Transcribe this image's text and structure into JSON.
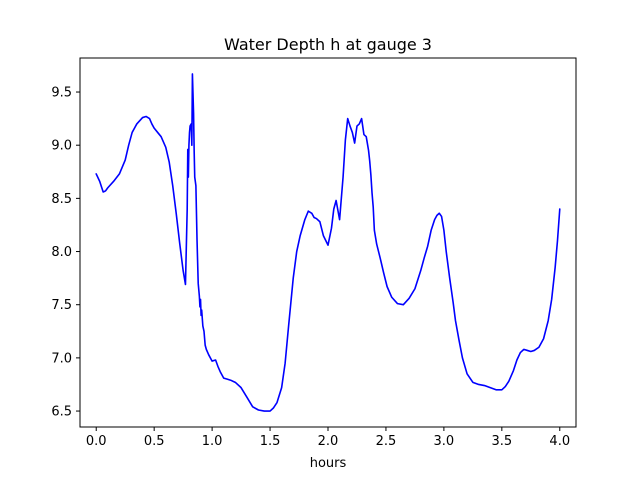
{
  "chart_data": {
    "type": "line",
    "title": "Water Depth h at gauge 3",
    "xlabel": "hours",
    "ylabel": "",
    "xlim": [
      -0.14,
      4.14
    ],
    "ylim": [
      6.35,
      9.82
    ],
    "grid": false,
    "xticks": [
      0.0,
      0.5,
      1.0,
      1.5,
      2.0,
      2.5,
      3.0,
      3.5,
      4.0
    ],
    "xtick_labels": [
      "0.0",
      "0.5",
      "1.0",
      "1.5",
      "2.0",
      "2.5",
      "3.0",
      "3.5",
      "4.0"
    ],
    "yticks": [
      6.5,
      7.0,
      7.5,
      8.0,
      8.5,
      9.0,
      9.5
    ],
    "ytick_labels": [
      "6.5",
      "7.0",
      "7.5",
      "8.0",
      "8.5",
      "9.0",
      "9.5"
    ],
    "series": [
      {
        "color": "#0000ff",
        "x": [
          0.0,
          0.03,
          0.06,
          0.08,
          0.1,
          0.15,
          0.2,
          0.25,
          0.28,
          0.31,
          0.35,
          0.4,
          0.43,
          0.46,
          0.48,
          0.5,
          0.53,
          0.56,
          0.6,
          0.63,
          0.66,
          0.69,
          0.72,
          0.75,
          0.77,
          0.785,
          0.79,
          0.795,
          0.8,
          0.805,
          0.81,
          0.82,
          0.825,
          0.83,
          0.84,
          0.845,
          0.85,
          0.86,
          0.87,
          0.88,
          0.89,
          0.895,
          0.9,
          0.905,
          0.91,
          0.92,
          0.93,
          0.94,
          0.95,
          0.97,
          1.0,
          1.03,
          1.05,
          1.07,
          1.1,
          1.13,
          1.16,
          1.2,
          1.25,
          1.3,
          1.35,
          1.4,
          1.45,
          1.5,
          1.53,
          1.56,
          1.6,
          1.63,
          1.66,
          1.7,
          1.73,
          1.76,
          1.8,
          1.83,
          1.86,
          1.88,
          1.9,
          1.93,
          1.96,
          2.0,
          2.03,
          2.05,
          2.07,
          2.1,
          2.13,
          2.15,
          2.17,
          2.19,
          2.21,
          2.23,
          2.25,
          2.27,
          2.29,
          2.31,
          2.33,
          2.35,
          2.36,
          2.37,
          2.38,
          2.39,
          2.4,
          2.42,
          2.45,
          2.48,
          2.51,
          2.55,
          2.6,
          2.65,
          2.7,
          2.75,
          2.8,
          2.83,
          2.86,
          2.89,
          2.92,
          2.94,
          2.96,
          2.98,
          3.0,
          3.02,
          3.05,
          3.08,
          3.1,
          3.13,
          3.16,
          3.2,
          3.25,
          3.3,
          3.35,
          3.4,
          3.45,
          3.5,
          3.53,
          3.56,
          3.6,
          3.63,
          3.66,
          3.69,
          3.72,
          3.75,
          3.78,
          3.82,
          3.86,
          3.9,
          3.93,
          3.96,
          3.98,
          4.0
        ],
        "y": [
          8.73,
          8.66,
          8.56,
          8.57,
          8.6,
          8.66,
          8.73,
          8.86,
          9.0,
          9.12,
          9.2,
          9.26,
          9.27,
          9.25,
          9.2,
          9.16,
          9.12,
          9.08,
          8.98,
          8.84,
          8.62,
          8.36,
          8.08,
          7.82,
          7.69,
          8.4,
          8.96,
          8.7,
          9.0,
          9.12,
          9.18,
          9.2,
          9.0,
          9.67,
          9.3,
          8.95,
          8.7,
          8.62,
          8.1,
          7.7,
          7.58,
          7.48,
          7.55,
          7.4,
          7.45,
          7.3,
          7.25,
          7.12,
          7.08,
          7.03,
          6.97,
          6.98,
          6.92,
          6.87,
          6.81,
          6.8,
          6.79,
          6.77,
          6.72,
          6.63,
          6.54,
          6.51,
          6.5,
          6.5,
          6.53,
          6.58,
          6.72,
          6.95,
          7.3,
          7.75,
          8.0,
          8.15,
          8.3,
          8.38,
          8.36,
          8.32,
          8.31,
          8.28,
          8.15,
          8.06,
          8.22,
          8.4,
          8.48,
          8.3,
          8.7,
          9.05,
          9.25,
          9.18,
          9.12,
          9.02,
          9.18,
          9.2,
          9.25,
          9.1,
          9.08,
          8.95,
          8.85,
          8.72,
          8.55,
          8.42,
          8.2,
          8.07,
          7.94,
          7.8,
          7.67,
          7.57,
          7.51,
          7.5,
          7.56,
          7.65,
          7.82,
          7.94,
          8.05,
          8.2,
          8.3,
          8.34,
          8.36,
          8.33,
          8.2,
          8.0,
          7.75,
          7.52,
          7.35,
          7.17,
          7.0,
          6.85,
          6.77,
          6.75,
          6.74,
          6.72,
          6.7,
          6.7,
          6.73,
          6.78,
          6.88,
          6.98,
          7.05,
          7.08,
          7.07,
          7.06,
          7.07,
          7.1,
          7.18,
          7.35,
          7.55,
          7.85,
          8.1,
          8.4
        ]
      }
    ]
  }
}
